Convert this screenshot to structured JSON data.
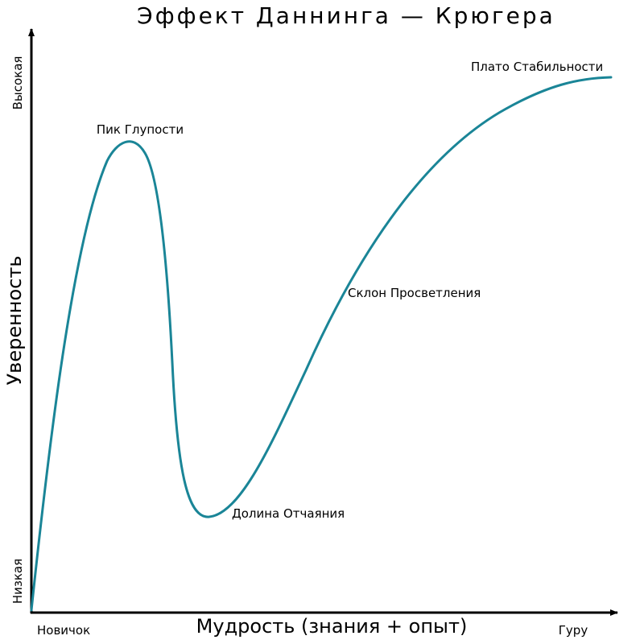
{
  "title": "Эффект Даннинга — Крюгера",
  "colors": {
    "curve": "#1a8597",
    "axis": "#000000",
    "text": "#000000",
    "background": "#ffffff"
  },
  "axes": {
    "y_title": "Уверенность",
    "x_title": "Мудрость (знания + опыт)",
    "y_high": "Высокая",
    "y_low": "Низкая",
    "x_low": "Новичок",
    "x_high": "Гуру"
  },
  "annotations": {
    "peak": "Пик Глупости",
    "valley": "Долина Отчаяния",
    "slope": "Склон Просветления",
    "plateau": "Плато Стабильности"
  }
}
